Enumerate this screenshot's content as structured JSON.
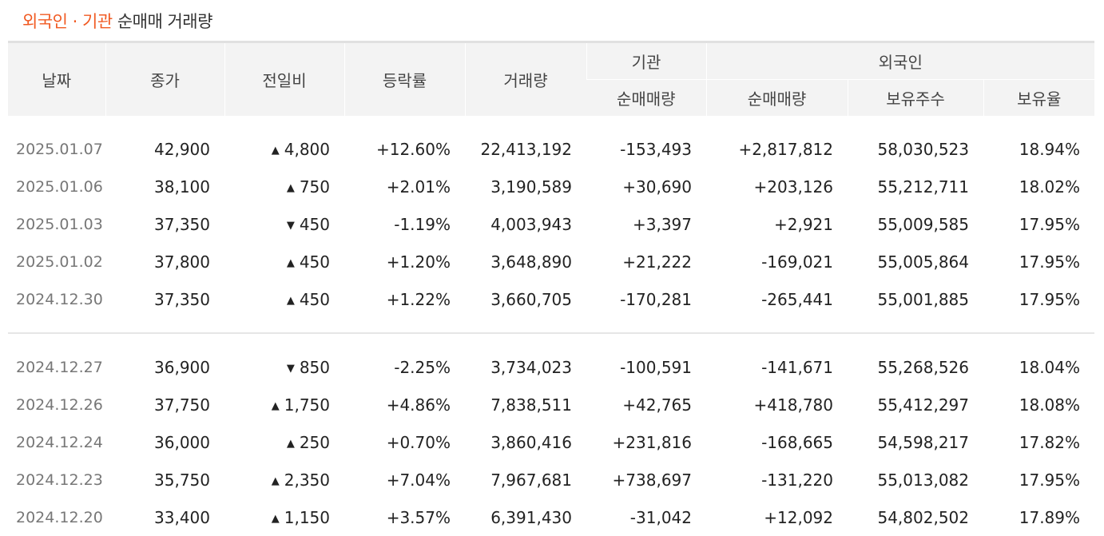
{
  "title": {
    "part1": "외국인",
    "sep": " · ",
    "part2": "기관",
    "rest": " 순매매 거래량"
  },
  "headers": {
    "date": "날짜",
    "close": "종가",
    "change": "전일비",
    "rate": "등락률",
    "volume": "거래량",
    "inst_group": "기관",
    "inst_net": "순매매량",
    "foreign_group": "외국인",
    "foreign_net": "순매매량",
    "foreign_holdings": "보유주수",
    "foreign_ratio": "보유율"
  },
  "colors": {
    "up": "#d0141c",
    "down": "#1a56d6",
    "accent": "#f15a22"
  },
  "rows": [
    {
      "date": "2025.01.07",
      "close": "42,900",
      "dir": "up",
      "change": "4,800",
      "rate": "+12.60%",
      "volume": "22,413,192",
      "inst": "-153,493",
      "foreign": "+2,817,812",
      "holdings": "58,030,523",
      "ratio": "18.94%"
    },
    {
      "date": "2025.01.06",
      "close": "38,100",
      "dir": "up",
      "change": "750",
      "rate": "+2.01%",
      "volume": "3,190,589",
      "inst": "+30,690",
      "foreign": "+203,126",
      "holdings": "55,212,711",
      "ratio": "18.02%"
    },
    {
      "date": "2025.01.03",
      "close": "37,350",
      "dir": "down",
      "change": "450",
      "rate": "-1.19%",
      "volume": "4,003,943",
      "inst": "+3,397",
      "foreign": "+2,921",
      "holdings": "55,009,585",
      "ratio": "17.95%"
    },
    {
      "date": "2025.01.02",
      "close": "37,800",
      "dir": "up",
      "change": "450",
      "rate": "+1.20%",
      "volume": "3,648,890",
      "inst": "+21,222",
      "foreign": "-169,021",
      "holdings": "55,005,864",
      "ratio": "17.95%"
    },
    {
      "date": "2024.12.30",
      "close": "37,350",
      "dir": "up",
      "change": "450",
      "rate": "+1.22%",
      "volume": "3,660,705",
      "inst": "-170,281",
      "foreign": "-265,441",
      "holdings": "55,001,885",
      "ratio": "17.95%"
    },
    {
      "date": "2024.12.27",
      "close": "36,900",
      "dir": "down",
      "change": "850",
      "rate": "-2.25%",
      "volume": "3,734,023",
      "inst": "-100,591",
      "foreign": "-141,671",
      "holdings": "55,268,526",
      "ratio": "18.04%"
    },
    {
      "date": "2024.12.26",
      "close": "37,750",
      "dir": "up",
      "change": "1,750",
      "rate": "+4.86%",
      "volume": "7,838,511",
      "inst": "+42,765",
      "foreign": "+418,780",
      "holdings": "55,412,297",
      "ratio": "18.08%"
    },
    {
      "date": "2024.12.24",
      "close": "36,000",
      "dir": "up",
      "change": "250",
      "rate": "+0.70%",
      "volume": "3,860,416",
      "inst": "+231,816",
      "foreign": "-168,665",
      "holdings": "54,598,217",
      "ratio": "17.82%"
    },
    {
      "date": "2024.12.23",
      "close": "35,750",
      "dir": "up",
      "change": "2,350",
      "rate": "+7.04%",
      "volume": "7,967,681",
      "inst": "+738,697",
      "foreign": "-131,220",
      "holdings": "55,013,082",
      "ratio": "17.95%"
    },
    {
      "date": "2024.12.20",
      "close": "33,400",
      "dir": "up",
      "change": "1,150",
      "rate": "+3.57%",
      "volume": "6,391,430",
      "inst": "-31,042",
      "foreign": "+12,092",
      "holdings": "54,802,502",
      "ratio": "17.89%"
    }
  ]
}
